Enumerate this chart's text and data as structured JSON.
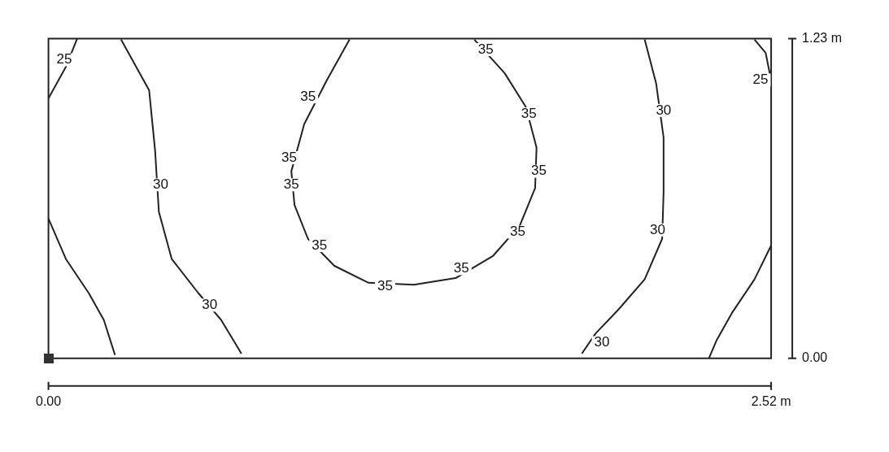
{
  "chart_data": {
    "type": "line",
    "xlim": [
      0,
      2.52
    ],
    "ylim": [
      0,
      1.23
    ],
    "xticks": [
      {
        "value": 0,
        "label": "0.00"
      },
      {
        "value": 2.52,
        "label": "2.52 m"
      }
    ],
    "yticks": [
      {
        "value": 0,
        "label": "0.00"
      },
      {
        "value": 1.23,
        "label": "1.23 m"
      }
    ],
    "legend": false,
    "marker": "none",
    "line_style": "solid",
    "series": [
      {
        "color": "#222222",
        "x": [
          0.1,
          0.06,
          0.0
        ],
        "values": [
          1.23,
          1.12,
          1.0
        ]
      },
      {
        "color": "#222222",
        "x": [
          0.253,
          0.351,
          0.372,
          0.385,
          0.43,
          0.522,
          0.602,
          0.673
        ],
        "values": [
          1.227,
          1.032,
          0.798,
          0.564,
          0.382,
          0.252,
          0.148,
          0.018
        ]
      },
      {
        "color": "#222222",
        "x": [
          0.0,
          0.061,
          0.14,
          0.193,
          0.232
        ],
        "values": [
          0.538,
          0.382,
          0.252,
          0.148,
          0.013
        ]
      },
      {
        "color": "#222222",
        "x": [
          1.05,
          0.971,
          0.892,
          0.847,
          0.858,
          0.905,
          0.997,
          1.116,
          1.274,
          1.42,
          1.551,
          1.644,
          1.697,
          1.702,
          1.665,
          1.591,
          1.485
        ],
        "values": [
          1.227,
          1.071,
          0.902,
          0.72,
          0.59,
          0.46,
          0.356,
          0.291,
          0.283,
          0.309,
          0.395,
          0.512,
          0.655,
          0.811,
          0.967,
          1.097,
          1.227
        ]
      },
      {
        "color": "#222222",
        "x": [
          2.079,
          2.119,
          2.145,
          2.145,
          2.14,
          2.079,
          1.987,
          1.908,
          1.86
        ],
        "values": [
          1.227,
          1.058,
          0.85,
          0.642,
          0.46,
          0.304,
          0.187,
          0.096,
          0.018
        ]
      },
      {
        "color": "#222222",
        "x": [
          2.462,
          2.501,
          2.52
        ],
        "values": [
          1.227,
          1.175,
          1.07
        ]
      },
      {
        "color": "#222222",
        "x": [
          2.52,
          2.462,
          2.383,
          2.33,
          2.303
        ],
        "values": [
          0.434,
          0.304,
          0.174,
          0.07,
          0.0
        ]
      }
    ],
    "annotations": [
      {
        "text": "25",
        "x": 0.055,
        "y": 1.149
      },
      {
        "text": "30",
        "x": 0.391,
        "y": 0.668
      },
      {
        "text": "30",
        "x": 0.562,
        "y": 0.205
      },
      {
        "text": "35",
        "x": 0.905,
        "y": 1.006
      },
      {
        "text": "35",
        "x": 0.839,
        "y": 0.772
      },
      {
        "text": "35",
        "x": 0.847,
        "y": 0.668
      },
      {
        "text": "35",
        "x": 0.945,
        "y": 0.434
      },
      {
        "text": "35",
        "x": 1.174,
        "y": 0.278
      },
      {
        "text": "35",
        "x": 1.44,
        "y": 0.345
      },
      {
        "text": "35",
        "x": 1.636,
        "y": 0.486
      },
      {
        "text": "35",
        "x": 1.71,
        "y": 0.72
      },
      {
        "text": "35",
        "x": 1.675,
        "y": 0.941
      },
      {
        "text": "35",
        "x": 1.525,
        "y": 1.188
      },
      {
        "text": "30",
        "x": 2.145,
        "y": 0.954
      },
      {
        "text": "30",
        "x": 2.124,
        "y": 0.494
      },
      {
        "text": "30",
        "x": 1.93,
        "y": 0.06
      },
      {
        "text": "25",
        "x": 2.483,
        "y": 1.071
      }
    ]
  }
}
